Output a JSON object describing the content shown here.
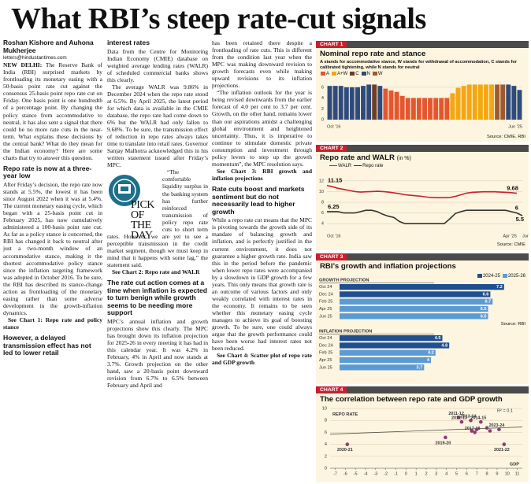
{
  "headline": "What RBI’s steep rate-cut signals",
  "article": {
    "byline": "Roshan Kishore and Auhona Mukherjee",
    "email": "letters@hindustantimes.com",
    "dateline": "NEW DELHI:",
    "pick": "PICK OF THE DAY",
    "headings": [
      "Repo rate is now at a three-year low",
      "However, a delayed transmission effect has not led to lower retail",
      "interest rates",
      "The rate cut action comes at a time when inflation is expected to turn benign while growth seems to be needing more support",
      "Rate cuts boost and markets sentiment but do not necessarily lead to higher growth"
    ],
    "paragraphs": [
      "The Reserve Bank of India (RBI) surprised markets by frontloading its monetary easing with a 50-basis point rate cut against the consensus 25-basis point repo rate cut on Friday. One basis point is one hundredth of a percentage point. By changing the policy stance from accommodative to neutral, it has also sent a signal that there could be no more rate cuts in the near-term. What explains these decisions by the central bank? What do they mean for the Indian economy? Here are some charts that try to answer this question.",
      "After Friday’s decision, the repo rate now stands at 5.5%, the lowest it has been since August 2022 when it was at 5.4%. The current monetary easing cycle, which began with a 25-basis point cut in February 2025, has now cumulatively administered a 100-basis point rate cut. As far as a policy stance is concerned, the RBI has changed it back to neutral after just a two-month window of an accommodative stance, making it the shortest accommodative policy stance since the inflation targeting framework was adopted in October 2016. To be sure, the RBI has described its stance-change action as frontloading of the monetary easing rather than some adverse development in the growth-inflation dynamics.",
      "Data from the Centre for Monitoring Indian Economy (CMIE) database on weighted average lending rates (WALR) of scheduled commercial banks shows this clearly.",
      "The average WALR was 9.86% in December 2024 when the repo rate stood at 6.5%. By April 2025, the latest period for which data is available in the CMIE database, the repo rate had come down to 6% but the WALR had only fallen to 9.68%. To be sure, the transmission effect of reduction in repo rates always takes time to translate into retail rates. Governor Sanjay Malhotra acknowledged this in his written statement issued after Friday’s MPC.",
      "“The comfortable liquidity surplus in the banking system has further reinforced transmission of policy repo rate cuts to short term rates. However, we are yet to see a perceptible transmission in the credit market segment, though we must keep in mind that it happens with some lag,” the statement said.",
      "MPC’s annual inflation and growth projections show this clearly. The MPC has brought down its inflation projection for 2025-26 in every meeting it has had in this calendar year. It was 4.2% in February, 4% in April and now stands at 3.7%. Growth projection on the other hand, saw a 20-basis point downward revision from 6.7% to 6.5% between February and April and",
      "has been retained there despite a frontloading of rate cuts. This is different from the condition last year when the MPC was making downward revision to growth forecasts even while making upward revisions to its inflation projections.",
      "“The inflation outlook for the year is being revised downwards from the earlier forecast of 4.0 per cent to 3.7 per cent. Growth, on the other hand, remains lower than our aspirations amidst a challenging global environment and heightened uncertainty. Thus, it is imperative to continue to stimulate domestic private consumption and investment through policy levers to step up the growth momentum”, the MPC resolution says.",
      "While a repo rate cut means that the MPC is pivoting towards the growth side of its mandate of balancing growth and inflation, and is perfectly justified in the current environment, it does not guarantee a higher growth rate. India saw this in the period before the pandemic when lower repo rates were accompanied by a slowdown in GDP growth for a few years. This only means that growth rate is an outcome of various factors and only weakly correlated with interest rates in the economy. It remains to be seen whether this monetary easing cycle manages to achieve its goal of boosting growth. To be sure, one could always argue that the growth performance could have been worse had interest rates not been reduced."
    ],
    "refs": [
      "See Chart 1: Repo rate and policy stance",
      "See Chart 2: Repo rate and WALR",
      "See Chart 3: RBI growth and inflation projections",
      "See Chart 4: Scatter plot of repo rate and GDP growth"
    ]
  },
  "charts": [
    {
      "type": "bar",
      "tab": "CHART 1",
      "title": "Nominal repo rate and stance",
      "subtitle": "A stands for accommodative stance, W stands for withdrawal of accommodation, C stands for calibrated tightening, while N stands for neutral",
      "legend": [
        {
          "name": "A",
          "color": "#e4572e"
        },
        {
          "name": "A+W",
          "color": "#f3a712"
        },
        {
          "name": "C",
          "color": "#6b3e26"
        },
        {
          "name": "N",
          "color": "#2f4b7c"
        },
        {
          "name": "W",
          "color": "#a05a2c"
        }
      ],
      "categories": [
        "Oct '16",
        null,
        null,
        null,
        null,
        null,
        null,
        null,
        null,
        null,
        null,
        null,
        null,
        null,
        null,
        null,
        null,
        null,
        null,
        null,
        null,
        null,
        null,
        null,
        null,
        null,
        null,
        null,
        null,
        null,
        null,
        null,
        null,
        null,
        "Jun '25"
      ],
      "values": [
        6.25,
        6.25,
        6.25,
        6.0,
        6.0,
        6.0,
        6.25,
        6.5,
        6.5,
        6.25,
        5.75,
        5.4,
        5.15,
        4.4,
        4,
        4,
        4,
        4,
        4,
        4,
        4,
        4,
        4.9,
        5.9,
        6.25,
        6.5,
        6.5,
        6.5,
        6.5,
        6.5,
        6.5,
        6.5,
        6.5,
        6.25,
        5.5
      ],
      "stance": [
        "N",
        "N",
        "N",
        "N",
        "N",
        "N",
        "N",
        "N",
        "C",
        "N",
        "A",
        "A",
        "A",
        "A",
        "A",
        "A",
        "A",
        "A",
        "A",
        "A",
        "A",
        "A",
        "A+W",
        "A+W",
        "A+W",
        "A+W",
        "A+W",
        "A+W",
        "A+W",
        "A+W",
        "W",
        "W",
        "N",
        "N",
        "N"
      ],
      "ylim": [
        0,
        7
      ],
      "yticks": [
        0,
        2,
        4,
        6
      ],
      "grid": true,
      "source": "Source: CMIE, RBI"
    },
    {
      "type": "line",
      "tab": "CHART 2",
      "title": "Repo rate and WALR",
      "title_unit": "(in %)",
      "categories": [
        "Oct '16",
        null,
        null,
        null,
        null,
        null,
        null,
        null,
        null,
        null,
        null,
        null,
        null,
        null,
        null,
        null,
        null,
        null,
        null,
        null,
        null,
        null,
        null,
        null,
        null,
        null,
        null,
        null,
        null,
        null,
        null,
        null,
        null,
        null,
        "Apr '25",
        "Jun '25"
      ],
      "series": [
        {
          "name": "WALR",
          "color": "#c8202f",
          "values": [
            11.15,
            10.9,
            10.6,
            10.4,
            10.2,
            10.0,
            9.9,
            9.95,
            10.0,
            10.05,
            10.0,
            9.9,
            9.75,
            9.6,
            9.4,
            9.3,
            9.2,
            9.1,
            8.95,
            8.9,
            8.85,
            8.85,
            8.9,
            9.1,
            9.4,
            9.7,
            9.85,
            9.9,
            9.95,
            9.95,
            9.95,
            9.9,
            9.86,
            9.8,
            9.68,
            null
          ]
        },
        {
          "name": "Repo rate",
          "color": "#333333",
          "values": [
            6.25,
            6.25,
            6.25,
            6.0,
            6.0,
            6.0,
            6.25,
            6.5,
            6.5,
            6.25,
            5.75,
            5.4,
            5.15,
            4.4,
            4,
            4,
            4,
            4,
            4,
            4,
            4,
            4,
            4.9,
            5.9,
            6.25,
            6.5,
            6.5,
            6.5,
            6.5,
            6.5,
            6.5,
            6.5,
            6.5,
            6.25,
            6,
            5.5
          ]
        }
      ],
      "ylim": [
        3,
        13
      ],
      "yticks": [
        4,
        6,
        8,
        10,
        12
      ],
      "grid": true,
      "source": "Source: CMIE"
    },
    {
      "type": "hbar",
      "tab": "CHART 3",
      "title": "RBI’s growth and inflation projections",
      "legend": [
        {
          "name": "2024-25",
          "color": "#1d4f91"
        },
        {
          "name": "2025-26",
          "color": "#5b9bd5"
        }
      ],
      "panels": [
        {
          "label": "GROWTH PROJECTION",
          "categories": [
            "Oct 24",
            "Dec 24",
            "Feb 25",
            "Apr 25",
            "Jun 25"
          ],
          "series": [
            {
              "values": [
                7.2,
                6.6,
                null,
                null,
                null
              ]
            },
            {
              "values": [
                null,
                null,
                6.7,
                6.5,
                6.5
              ]
            }
          ]
        },
        {
          "label": "INFLATION PROJECTION",
          "categories": [
            "Oct 24",
            "Dec 24",
            "Feb 25",
            "Apr 25",
            "Jun 25"
          ],
          "series": [
            {
              "values": [
                4.5,
                4.8,
                null,
                null,
                null
              ]
            },
            {
              "values": [
                null,
                null,
                4.2,
                4,
                3.7
              ]
            }
          ]
        }
      ],
      "xlim": [
        0,
        8
      ],
      "source": "Source: RBI"
    },
    {
      "type": "scatter",
      "tab": "CHART 4",
      "title": "The correlation between repo rate and GDP growth",
      "ylabel": "REPO RATE",
      "xlabel": "GDP",
      "annotation": "R² = 0.1",
      "color": "#8e3a7a",
      "points": {
        "x": [
          5.2,
          5.5,
          6.4,
          7.4,
          8.0,
          8.3,
          6.8,
          6.5,
          3.9,
          -5.8,
          9.7,
          7.0,
          9.2,
          6.5
        ],
        "y": [
          8.5,
          7.75,
          8.0,
          7.75,
          6.75,
          6.25,
          6.0,
          6.25,
          5.15,
          4.0,
          4.0,
          6.5,
          6.5,
          6.25
        ],
        "labels": [
          "2011-12",
          "2012-13",
          "2013-14",
          "2014-15",
          null,
          null,
          "2017-18",
          null,
          "2019-20",
          "2020-21",
          "2021-22",
          null,
          "2023-24",
          null
        ]
      },
      "trend": [
        5.7,
        6.9
      ],
      "xlim": [
        -7.5,
        11.5
      ],
      "xticks": [
        -7,
        -6,
        -5,
        -4,
        -3,
        -2,
        -1,
        0,
        1,
        2,
        3,
        4,
        5,
        6,
        7,
        8,
        9,
        10,
        11
      ],
      "ylim": [
        0,
        10
      ],
      "yticks": [
        0,
        2,
        4,
        6,
        8,
        10
      ],
      "grid": true
    }
  ]
}
